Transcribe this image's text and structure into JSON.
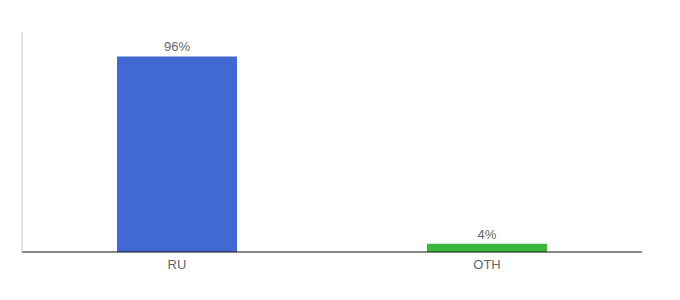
{
  "chart_data": {
    "type": "bar",
    "categories": [
      "RU",
      "OTH"
    ],
    "values": [
      96,
      4
    ],
    "value_labels": [
      "96%",
      "4%"
    ],
    "colors": [
      "#4169d4",
      "#3cb73c"
    ],
    "ylim": [
      0,
      108
    ],
    "data_labels": true,
    "tick_labels": "x",
    "grid": false
  }
}
